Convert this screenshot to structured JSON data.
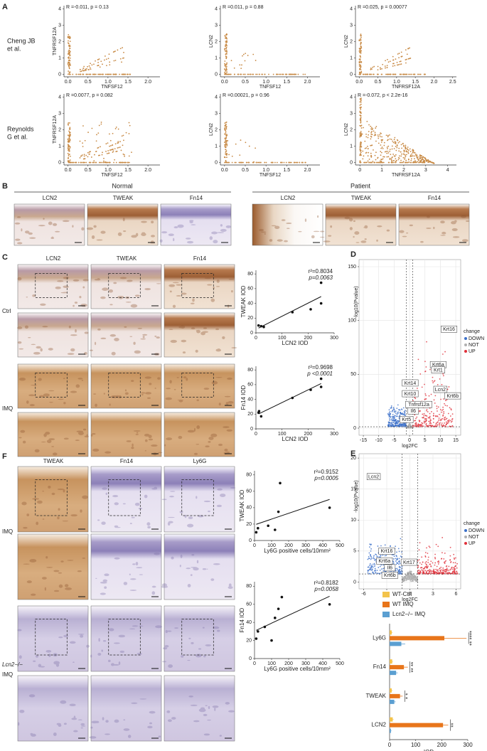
{
  "letters": [
    "A",
    "B",
    "C",
    "D",
    "E",
    "F"
  ],
  "panelA": {
    "rows": [
      [
        "Cheng JB",
        "et al."
      ],
      [
        "Reynolds",
        "G et al."
      ]
    ],
    "plots": [
      {
        "type": "scatter",
        "stat": "R =-0.011, p = 0.13",
        "xlabel": "TNFSF12",
        "ylabel": "TNFRSF12A",
        "xlim": [
          -0.1,
          2.3
        ],
        "ylim": [
          -0.15,
          4.2
        ],
        "xticks": [
          {
            "value": 0,
            "label": "0.0"
          },
          {
            "value": 0.5,
            "label": "0.5"
          },
          {
            "value": 1,
            "label": "1.0"
          },
          {
            "value": 1.5,
            "label": "1.5"
          },
          {
            "value": 2,
            "label": "2.0"
          }
        ],
        "yticks": [
          0,
          1,
          2,
          3,
          4
        ]
      },
      {
        "type": "scatter",
        "stat": "R =0.011, p = 0.88",
        "xlabel": "TNFSF12",
        "ylabel": "LCN2",
        "xlim": [
          -0.1,
          2.3
        ],
        "ylim": [
          -0.15,
          4.2
        ],
        "xticks": [
          {
            "value": 0,
            "label": "0.0"
          },
          {
            "value": 0.5,
            "label": "0.5"
          },
          {
            "value": 1,
            "label": "1.0"
          },
          {
            "value": 1.5,
            "label": "1.5"
          },
          {
            "value": 2,
            "label": "2.0"
          }
        ],
        "yticks": [
          0,
          1,
          2,
          3,
          4
        ]
      },
      {
        "type": "scatter",
        "stat": "R =0.025, p = 0.00077",
        "xlabel": "TNFRSF12A",
        "ylabel": "LCN2",
        "xlim": [
          -0.1,
          2.6
        ],
        "ylim": [
          -0.15,
          4.2
        ],
        "xticks": [
          {
            "value": 0,
            "label": "0.0"
          },
          {
            "value": 0.5,
            "label": "0.5"
          },
          {
            "value": 1,
            "label": "1.0"
          },
          {
            "value": 1.5,
            "label": "1.5"
          },
          {
            "value": 2,
            "label": "2.0"
          },
          {
            "value": 2.5,
            "label": "2.5"
          }
        ],
        "yticks": [
          0,
          1,
          2,
          3,
          4
        ]
      },
      {
        "type": "scatter",
        "stat": "R =0.0077, p = 0.082",
        "xlabel": "TNFSF12",
        "ylabel": "TNFRSF12A",
        "xlim": [
          -0.1,
          2.3
        ],
        "ylim": [
          -0.15,
          4.2
        ],
        "xticks": [
          {
            "value": 0,
            "label": "0.0"
          },
          {
            "value": 0.5,
            "label": "0.5"
          },
          {
            "value": 1,
            "label": "1.0"
          },
          {
            "value": 1.5,
            "label": "1.5"
          },
          {
            "value": 2,
            "label": "2.0"
          }
        ],
        "yticks": [
          0,
          1,
          2,
          3,
          4
        ]
      },
      {
        "type": "scatter",
        "stat": "R =0.00021, p = 0.96",
        "xlabel": "TNFSF12",
        "ylabel": "LCN2",
        "xlim": [
          -0.1,
          2.3
        ],
        "ylim": [
          -0.15,
          4.2
        ],
        "xticks": [
          {
            "value": 0,
            "label": "0.0"
          },
          {
            "value": 0.5,
            "label": "0.5"
          },
          {
            "value": 1,
            "label": "1.0"
          },
          {
            "value": 1.5,
            "label": "1.5"
          },
          {
            "value": 2,
            "label": "2.0"
          }
        ],
        "yticks": [
          0,
          1,
          2,
          3,
          4
        ]
      },
      {
        "type": "scatter",
        "stat": "R =-0.072, p < 2.2e-16",
        "xlabel": "TNFRSF12A",
        "ylabel": "LCN2",
        "xlim": [
          -0.2,
          4.4
        ],
        "ylim": [
          -0.15,
          4.2
        ],
        "xticks": [
          0,
          1,
          2,
          3,
          4
        ],
        "yticks": [
          0,
          1,
          2,
          3,
          4
        ]
      }
    ]
  },
  "panelB": {
    "groups": [
      {
        "title": "Normal",
        "columns": [
          "LCN2",
          "TWEAK",
          "Fn14"
        ]
      },
      {
        "title": "Patient",
        "columns": [
          "LCN2",
          "TWEAK",
          "Fn14"
        ]
      }
    ]
  },
  "panelC": {
    "columns": [
      "LCN2",
      "TWEAK",
      "Fn14"
    ],
    "rows": [
      "Ctrl",
      "IMQ"
    ],
    "plots": [
      {
        "type": "scatter",
        "r2": "r²=0.8034",
        "p": "p=0.0063",
        "xlabel": "LCN2 IOD",
        "ylabel": "TWEAK IOD",
        "xlim": [
          0,
          300
        ],
        "ylim": [
          0,
          85
        ],
        "xticks": [
          0,
          100,
          200,
          300
        ],
        "yticks": [
          0,
          20,
          40,
          60,
          80
        ],
        "x": [
          10,
          20,
          30,
          140,
          210,
          250,
          250
        ],
        "y": [
          10,
          9,
          8,
          28,
          32,
          40,
          68
        ]
      },
      {
        "type": "scatter",
        "r2": "r²=0.9698",
        "p": "p <0.0001",
        "xlabel": "LCN2 IOD",
        "ylabel": "Fn14 IOD",
        "xlim": [
          0,
          300
        ],
        "ylim": [
          0,
          85
        ],
        "xticks": [
          0,
          100,
          200,
          300
        ],
        "yticks": [
          0,
          20,
          40,
          60,
          80
        ],
        "x": [
          10,
          12,
          20,
          140,
          210,
          250,
          250
        ],
        "y": [
          22,
          24,
          17,
          42,
          53,
          57,
          68
        ]
      }
    ]
  },
  "panelD": {
    "type": "volcano",
    "xlabel": "log2FC",
    "ylabel": "-log10(Pvalue)",
    "xlim": [
      -16.4,
      16.6
    ],
    "ylim": [
      -6.6,
      156.6
    ],
    "xticks": [
      -15,
      -10,
      -5,
      0,
      5,
      10,
      15
    ],
    "yticks": [
      0,
      50,
      100,
      150
    ],
    "grid": true,
    "thresholds": {
      "x": [
        -1,
        1
      ],
      "y": 1.3
    },
    "legend": {
      "title": "change",
      "items": [
        {
          "name": "DOWN",
          "color": "#3b6fc9"
        },
        {
          "name": "NOT",
          "color": "#b0b0b0"
        },
        {
          "name": "UP",
          "color": "#e0303a"
        }
      ]
    },
    "genes": [
      {
        "label": "Krt16",
        "x": 12.8,
        "y": 92
      },
      {
        "label": "Krt6a",
        "x": 9.3,
        "y": 59
      },
      {
        "label": "Krt1",
        "x": 9.3,
        "y": 54
      },
      {
        "label": "Krt14",
        "x": 0.2,
        "y": 42
      },
      {
        "label": "Lcn2",
        "x": 10,
        "y": 36
      },
      {
        "label": "Krt10",
        "x": 0.2,
        "y": 32
      },
      {
        "label": "Krt6b",
        "x": 14,
        "y": 30
      },
      {
        "label": "Tnfrsf12a",
        "x": 3,
        "y": 22
      },
      {
        "label": "Il6",
        "x": 1.2,
        "y": 16
      },
      {
        "label": "Krt5",
        "x": -1,
        "y": 8
      }
    ]
  },
  "panelE": {
    "type": "volcano",
    "xlabel": "log2FC",
    "ylabel": "-log10(Pvalue)",
    "xlim": [
      -6.6,
      6.6
    ],
    "ylim": [
      -1.1,
      20.7
    ],
    "xticks": [
      -6,
      -3,
      0,
      3,
      6
    ],
    "yticks": [
      0,
      5,
      10,
      15,
      20
    ],
    "grid": true,
    "thresholds": {
      "x": [
        -1,
        1
      ],
      "y": 1.3
    },
    "legend": {
      "title": "change",
      "items": [
        {
          "name": "DOWN",
          "color": "#3b6fc9"
        },
        {
          "name": "NOT",
          "color": "#b0b0b0"
        },
        {
          "name": "UP",
          "color": "#e0303a"
        }
      ]
    },
    "genes": [
      {
        "label": "Lcn2",
        "x": -4.7,
        "y": 17
      },
      {
        "label": "Krt16",
        "x": -3,
        "y": 5
      },
      {
        "label": "Krt6a",
        "x": -3.3,
        "y": 3.4
      },
      {
        "label": "Krt17",
        "x": -0.1,
        "y": 3.2
      },
      {
        "label": "Il6",
        "x": -2.6,
        "y": 2.3
      },
      {
        "label": "Krt6b",
        "x": -2.6,
        "y": 1.1
      }
    ]
  },
  "panelF": {
    "columns": [
      "TWEAK",
      "Fn14",
      "Ly6G"
    ],
    "rows": [
      [
        "IMQ"
      ],
      [
        "Lcn2−/−",
        "IMQ"
      ]
    ],
    "plots": [
      {
        "type": "scatter",
        "r2": "r²=0.9152",
        "p": "p=0.0005",
        "xlabel": "Ly6G positive cells/10mm²",
        "ylabel": "TWEAK IOD",
        "xlim": [
          0,
          500
        ],
        "ylim": [
          0,
          85
        ],
        "xticks": [
          0,
          100,
          200,
          300,
          400,
          500
        ],
        "yticks": [
          0,
          20,
          40,
          60,
          80
        ],
        "x": [
          10,
          20,
          80,
          120,
          140,
          150,
          440
        ],
        "y": [
          10,
          15,
          18,
          13,
          35,
          70,
          40
        ]
      },
      {
        "type": "scatter",
        "r2": "r²=0.8182",
        "p": "p=0.0058",
        "xlabel": "Ly6G positive cells/10mm²",
        "ylabel": "Fn14 IOD",
        "xlim": [
          0,
          500
        ],
        "ylim": [
          0,
          85
        ],
        "xticks": [
          0,
          100,
          200,
          300,
          400,
          500
        ],
        "yticks": [
          0,
          20,
          40,
          60,
          80
        ],
        "x": [
          10,
          20,
          60,
          100,
          120,
          140,
          160,
          440
        ],
        "y": [
          22,
          30,
          35,
          20,
          45,
          55,
          68,
          60
        ]
      }
    ],
    "bar": {
      "type": "bar",
      "orientation": "horizontal",
      "categories": [
        "Ly6G",
        "Fn14",
        "TWEAK",
        "LCN2"
      ],
      "series": [
        {
          "name": "WT-Ctrl",
          "color": "#f3c34b",
          "values": [
            8,
            10,
            8,
            12
          ],
          "errors": [
            3,
            3,
            3,
            3
          ]
        },
        {
          "name": "WT IMQ",
          "color": "#e8751a",
          "values": [
            210,
            55,
            40,
            205
          ],
          "errors": [
            85,
            15,
            10,
            20
          ]
        },
        {
          "name": "Lcn2−/− IMQ",
          "color": "#5b9fd1",
          "values": [
            45,
            25,
            18,
            5
          ],
          "errors": [
            15,
            6,
            5,
            2
          ]
        }
      ],
      "xlabel": "IOD",
      "xlim": [
        0,
        300
      ],
      "xticks": [
        0,
        100,
        200,
        300
      ],
      "significance": [
        "** ****",
        "** **",
        "* *",
        "**"
      ]
    }
  }
}
